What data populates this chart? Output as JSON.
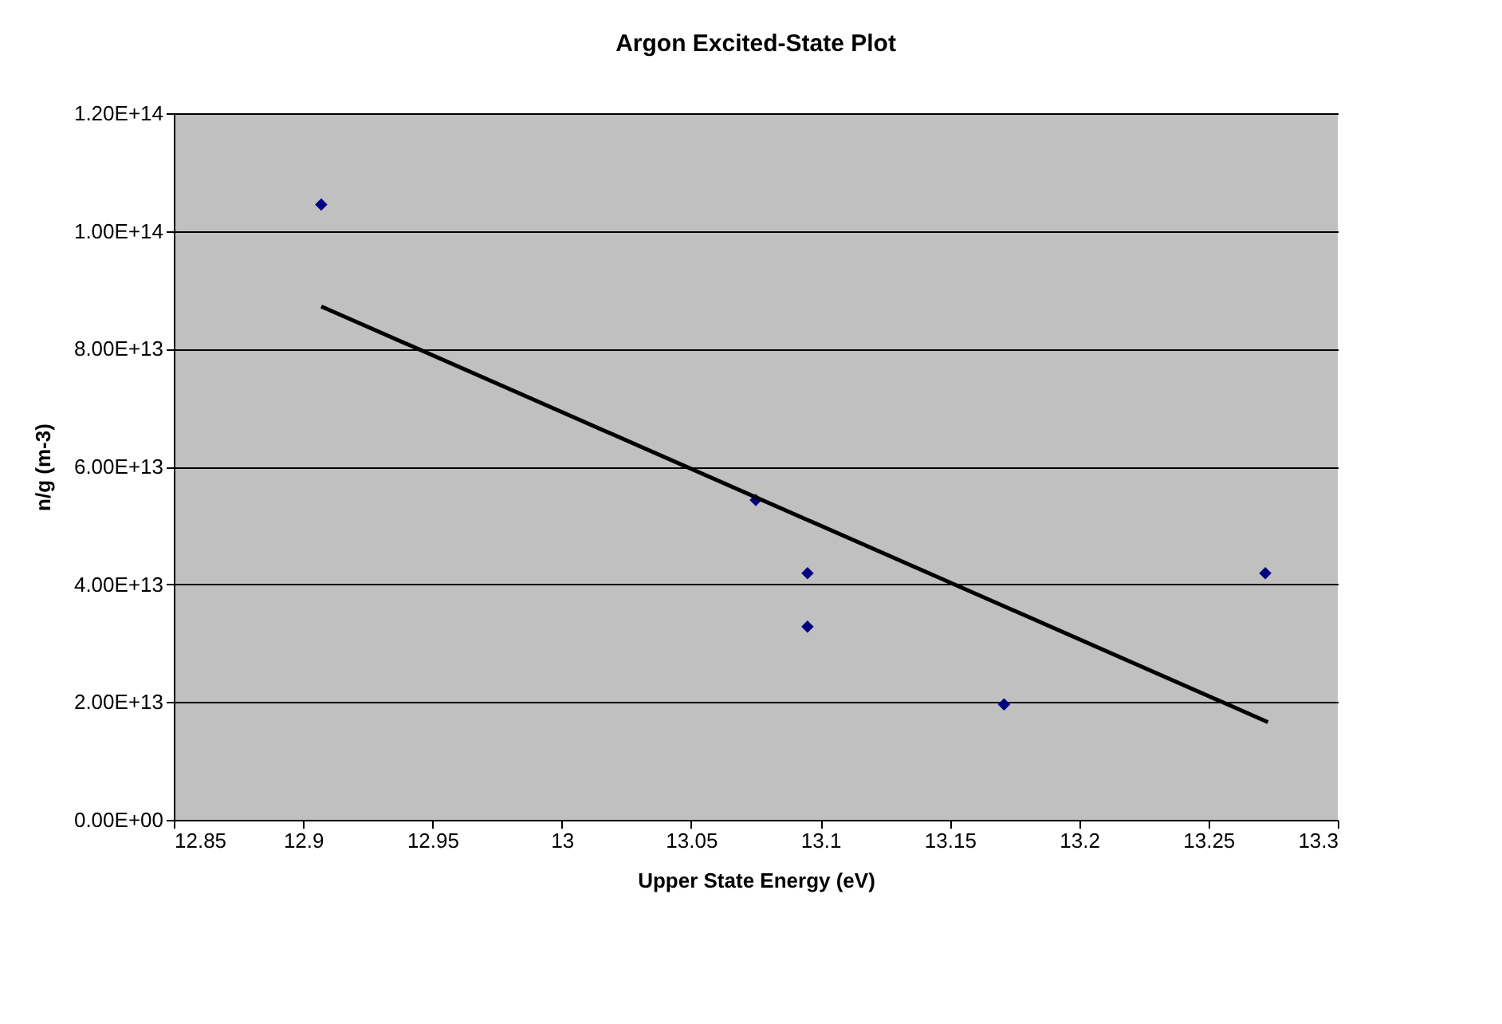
{
  "chart_data": {
    "type": "scatter",
    "title": "Argon Excited-State Plot",
    "xlabel": "Upper State Energy (eV)",
    "ylabel": "n/g (m-3)",
    "series": [
      {
        "color": "#000080",
        "marker": "diamond",
        "x": [
          12.907,
          13.075,
          13.095,
          13.095,
          13.171,
          13.272
        ],
        "values": [
          104500000000000.0,
          54300000000000.0,
          41900000000000.0,
          32800000000000.0,
          19600000000000.0,
          41900000000000.0
        ]
      },
      {
        "type": "line",
        "color": "#000000",
        "line_style": "solid",
        "x": [
          12.907,
          13.273
        ],
        "values": [
          87200000000000.0,
          16600000000000.0
        ]
      }
    ],
    "xlim": [
      12.85,
      13.3
    ],
    "xticks": [
      12.85,
      12.9,
      12.95,
      13,
      13.05,
      13.1,
      13.15,
      13.2,
      13.25,
      13.3
    ],
    "ylim": [
      0,
      120000000000000.0
    ],
    "yticks": [
      {
        "value": 0,
        "label": "0.00E+00"
      },
      {
        "value": 20000000000000.0,
        "label": "2.00E+13"
      },
      {
        "value": 40000000000000.0,
        "label": "4.00E+13"
      },
      {
        "value": 60000000000000.0,
        "label": "6.00E+13"
      },
      {
        "value": 80000000000000.0,
        "label": "8.00E+13"
      },
      {
        "value": 100000000000000.0,
        "label": "1.00E+14"
      },
      {
        "value": 120000000000000.0,
        "label": "1.20E+14"
      }
    ],
    "grid": "y"
  }
}
